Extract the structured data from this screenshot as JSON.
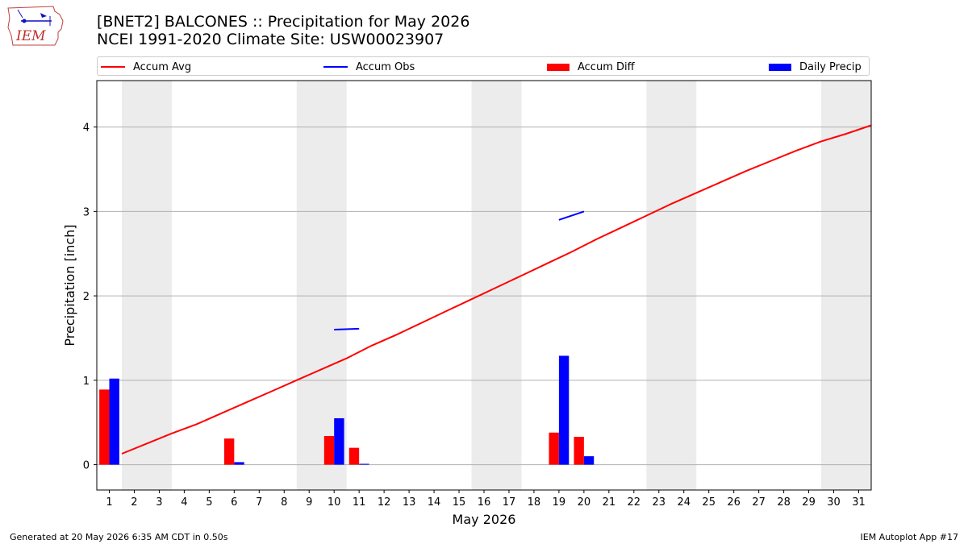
{
  "logo": {
    "text": "IEM",
    "icon": "iowa-state-weather-logo"
  },
  "title": {
    "line1": "[BNET2] BALCONES :: Precipitation for May 2026",
    "line2": "NCEI 1991-2020 Climate Site: USW00023907"
  },
  "legend": {
    "placement": "top, above plot",
    "items": [
      {
        "label": "Accum Avg",
        "kind": "line",
        "color": "#ff0000"
      },
      {
        "label": "Accum Obs",
        "kind": "line",
        "color": "#0000ff"
      },
      {
        "label": "Accum Diff",
        "kind": "bar",
        "color": "#ff0000"
      },
      {
        "label": "Daily Precip",
        "kind": "bar",
        "color": "#0000ff"
      }
    ]
  },
  "footer": {
    "left": "Generated at 20 May 2026 6:35 AM CDT in 0.50s",
    "right": "IEM Autoplot App #17"
  },
  "chart_data": {
    "type": "bar",
    "xlabel": "May 2026",
    "ylabel": "Precipitation [inch]",
    "xlim": [
      0.5,
      31.5
    ],
    "ylim": [
      -0.3,
      4.55
    ],
    "x_ticks": [
      1,
      2,
      3,
      4,
      5,
      6,
      7,
      8,
      9,
      10,
      11,
      12,
      13,
      14,
      15,
      16,
      17,
      18,
      19,
      20,
      21,
      22,
      23,
      24,
      25,
      26,
      27,
      28,
      29,
      30,
      31
    ],
    "y_ticks": [
      0,
      1,
      2,
      3,
      4
    ],
    "grid": "horizontal at y ticks",
    "weekend_shading": [
      [
        1.5,
        3.5
      ],
      [
        8.5,
        10.5
      ],
      [
        15.5,
        17.5
      ],
      [
        22.5,
        24.5
      ],
      [
        29.5,
        31.5
      ]
    ],
    "colors": {
      "avg": "#ff0000",
      "obs": "#0000ff",
      "diff": "#ff0000",
      "daily": "#0000ff",
      "shade": "#ececec",
      "grid": "#b0b0b0"
    },
    "series": [
      {
        "name": "Accum Avg",
        "type": "line",
        "x": [
          1,
          2,
          3,
          4,
          5,
          6,
          7,
          8,
          9,
          10,
          11,
          12,
          13,
          14,
          15,
          16,
          17,
          18,
          19,
          20,
          21,
          22,
          23,
          24,
          25,
          26,
          27,
          28,
          29,
          30,
          31
        ],
        "values": [
          0.13,
          0.25,
          0.37,
          0.48,
          0.61,
          0.74,
          0.87,
          1.0,
          1.13,
          1.26,
          1.41,
          1.54,
          1.68,
          1.82,
          1.96,
          2.1,
          2.24,
          2.38,
          2.52,
          2.67,
          2.81,
          2.95,
          3.09,
          3.22,
          3.35,
          3.48,
          3.6,
          3.72,
          3.83,
          3.92,
          4.02
        ]
      },
      {
        "name": "Accum Obs",
        "type": "line",
        "segments": [
          {
            "x": [
              10,
              11
            ],
            "values": [
              1.6,
              1.61
            ]
          },
          {
            "x": [
              19,
              20
            ],
            "values": [
              2.9,
              3.0
            ]
          }
        ]
      },
      {
        "name": "Accum Diff",
        "type": "bar",
        "x": [
          1,
          6,
          10,
          11,
          19,
          20
        ],
        "values": [
          0.89,
          0.31,
          0.34,
          0.2,
          0.38,
          0.33
        ]
      },
      {
        "name": "Daily Precip",
        "type": "bar",
        "x": [
          1,
          6,
          10,
          11,
          19,
          20
        ],
        "values": [
          1.02,
          0.03,
          0.55,
          0.01,
          1.29,
          0.1
        ]
      }
    ]
  }
}
